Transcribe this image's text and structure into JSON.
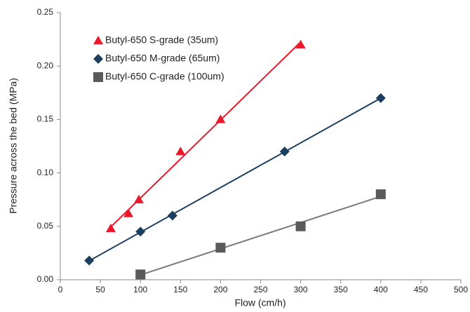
{
  "chart_data": {
    "type": "scatter",
    "x_label": "Flow (cm/h)",
    "y_label": "Pressure across the bed (MPa)",
    "xlim": [
      0,
      500
    ],
    "xticks": [
      0,
      50,
      100,
      150,
      200,
      250,
      300,
      350,
      400,
      450,
      500
    ],
    "ylim": [
      0,
      0.25
    ],
    "yticks": [
      {
        "value": 0,
        "label": "0.00"
      },
      {
        "value": 0.05,
        "label": "0.05"
      },
      {
        "value": 0.1,
        "label": "0.10"
      },
      {
        "value": 0.15,
        "label": "0.15"
      },
      {
        "value": 0.2,
        "label": "0.20"
      },
      {
        "value": 0.25,
        "label": "0.25"
      }
    ],
    "trendline": true,
    "series": [
      {
        "name": "Butyl-650 S-grade (35um)",
        "color": "#e8192c",
        "marker": "triangle",
        "x": [
          63,
          85,
          98,
          150,
          200,
          300
        ],
        "values": [
          0.048,
          0.062,
          0.075,
          0.12,
          0.15,
          0.22
        ]
      },
      {
        "name": "Butyl-650 M-grade (65um)",
        "color": "#1b3d5e",
        "marker": "diamond",
        "x": [
          36,
          100,
          140,
          280,
          400
        ],
        "values": [
          0.018,
          0.045,
          0.06,
          0.12,
          0.17
        ]
      },
      {
        "name": "Butyl-650 C-grade (100um)",
        "color": "#5a5a5a",
        "line_color": "#7a7a7a",
        "marker": "square",
        "x": [
          100,
          200,
          300,
          400
        ],
        "values": [
          0.005,
          0.03,
          0.05,
          0.08
        ]
      }
    ]
  }
}
